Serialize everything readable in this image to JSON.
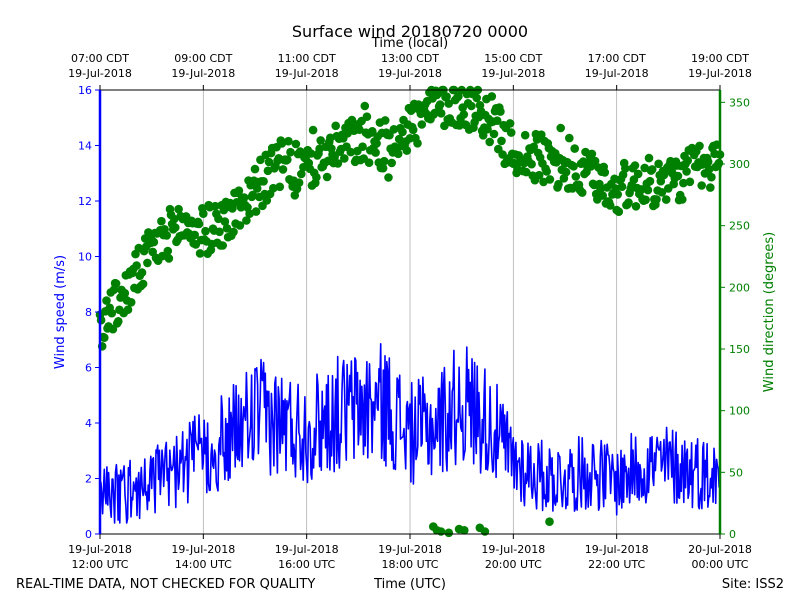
{
  "chart_data": {
    "type": "line",
    "title": "Surface wind 20180720 0000",
    "top_axis_label": "Time (local)",
    "xlabel": "Time (UTC)",
    "ylabel_left": "Wind speed (m/s)",
    "ylabel_right": "Wind direction (degrees)",
    "x_range_hours": [
      12,
      24
    ],
    "ylim_left": [
      0,
      16
    ],
    "ylim_right": [
      0,
      360
    ],
    "grid": "vertical",
    "colors": {
      "speed": "#0000ff",
      "direction": "#008000"
    },
    "bottom_ticks": [
      {
        "hour": 12,
        "date": "19-Jul-2018",
        "time": "12:00 UTC"
      },
      {
        "hour": 14,
        "date": "19-Jul-2018",
        "time": "14:00 UTC"
      },
      {
        "hour": 16,
        "date": "19-Jul-2018",
        "time": "16:00 UTC"
      },
      {
        "hour": 18,
        "date": "19-Jul-2018",
        "time": "18:00 UTC"
      },
      {
        "hour": 20,
        "date": "19-Jul-2018",
        "time": "20:00 UTC"
      },
      {
        "hour": 22,
        "date": "19-Jul-2018",
        "time": "22:00 UTC"
      },
      {
        "hour": 24,
        "date": "20-Jul-2018",
        "time": "00:00 UTC"
      }
    ],
    "top_ticks": [
      {
        "hour": 12,
        "time": "07:00 CDT",
        "date": "19-Jul-2018"
      },
      {
        "hour": 14,
        "time": "09:00 CDT",
        "date": "19-Jul-2018"
      },
      {
        "hour": 16,
        "time": "11:00 CDT",
        "date": "19-Jul-2018"
      },
      {
        "hour": 18,
        "time": "13:00 CDT",
        "date": "19-Jul-2018"
      },
      {
        "hour": 20,
        "time": "15:00 CDT",
        "date": "19-Jul-2018"
      },
      {
        "hour": 22,
        "time": "17:00 CDT",
        "date": "19-Jul-2018"
      },
      {
        "hour": 24,
        "time": "19:00 CDT",
        "date": "19-Jul-2018"
      }
    ],
    "left_ticks": [
      0,
      2,
      4,
      6,
      8,
      10,
      12,
      14,
      16
    ],
    "right_ticks": [
      0,
      50,
      100,
      150,
      200,
      250,
      300,
      350
    ],
    "series": [
      {
        "name": "Wind speed",
        "axis": "left",
        "style": "line",
        "x": [
          12.0,
          12.5,
          13.0,
          13.5,
          14.0,
          14.5,
          15.0,
          15.5,
          16.0,
          16.5,
          17.0,
          17.5,
          18.0,
          18.5,
          19.0,
          19.5,
          20.0,
          20.5,
          21.0,
          21.5,
          22.0,
          22.5,
          23.0,
          23.5,
          24.0
        ],
        "values": [
          1.3,
          1.5,
          1.9,
          2.3,
          2.9,
          3.4,
          4.3,
          4.0,
          3.7,
          4.3,
          4.5,
          4.7,
          3.6,
          3.9,
          4.8,
          4.1,
          2.6,
          2.1,
          2.0,
          2.3,
          1.9,
          2.5,
          2.5,
          2.3,
          2.0
        ]
      },
      {
        "name": "Wind direction",
        "axis": "right",
        "style": "scatter",
        "x": [
          12.0,
          12.5,
          13.0,
          13.5,
          14.0,
          14.5,
          15.0,
          15.5,
          16.0,
          16.5,
          17.0,
          17.5,
          18.0,
          18.5,
          19.0,
          19.5,
          20.0,
          20.5,
          21.0,
          21.5,
          22.0,
          22.5,
          23.0,
          23.5,
          24.0
        ],
        "values": [
          170,
          195,
          230,
          250,
          245,
          255,
          280,
          300,
          295,
          310,
          320,
          315,
          330,
          345,
          350,
          340,
          310,
          305,
          295,
          290,
          280,
          285,
          285,
          295,
          300
        ]
      }
    ],
    "low_direction_points": {
      "x": [
        18.45,
        18.52,
        18.6,
        18.75,
        18.95,
        19.05,
        19.35,
        19.45,
        20.7
      ],
      "values": [
        6,
        3,
        2,
        1,
        4,
        3,
        5,
        2,
        10
      ]
    },
    "footer": {
      "left": "REAL-TIME DATA, NOT CHECKED FOR QUALITY",
      "center": "Time (UTC)",
      "right": "Site: ISS2"
    }
  }
}
